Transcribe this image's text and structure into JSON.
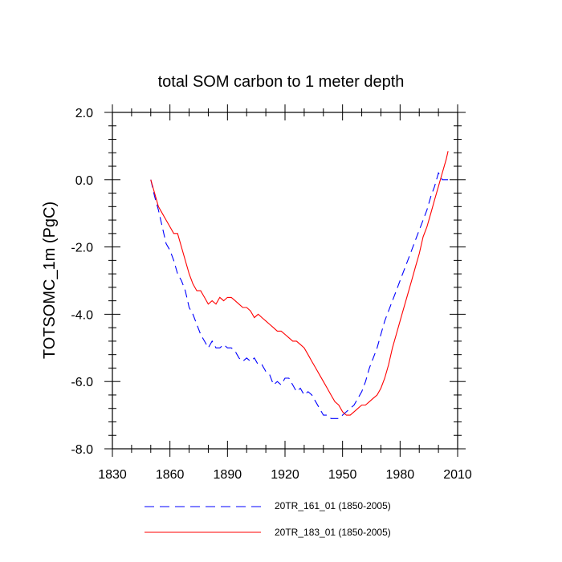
{
  "chart_data": {
    "type": "line",
    "title": "total SOM carbon to 1 meter depth",
    "xlabel": "",
    "ylabel": "TOTSOMC_1m  (PgC)",
    "xlim": [
      1830,
      2010
    ],
    "ylim": [
      -8.0,
      2.0
    ],
    "x_ticks": [
      1830,
      1860,
      1890,
      1920,
      1950,
      1980,
      2010
    ],
    "y_ticks": [
      -8.0,
      -6.0,
      -4.0,
      -2.0,
      0.0,
      2.0
    ],
    "y_tick_labels": [
      "-8.0",
      "-6.0",
      "-4.0",
      "-2.0",
      "0.0",
      "2.0"
    ],
    "legend_position": "bottom",
    "series": [
      {
        "name": "20TR_161_01 (1850-2005)",
        "color": "#0000ff",
        "style": "dashed",
        "x": [
          1850,
          1852,
          1854,
          1856,
          1858,
          1860,
          1862,
          1864,
          1866,
          1868,
          1870,
          1872,
          1874,
          1876,
          1878,
          1880,
          1882,
          1884,
          1886,
          1888,
          1890,
          1892,
          1894,
          1896,
          1898,
          1900,
          1902,
          1904,
          1906,
          1908,
          1910,
          1912,
          1914,
          1916,
          1918,
          1920,
          1922,
          1924,
          1926,
          1928,
          1930,
          1932,
          1934,
          1936,
          1938,
          1940,
          1942,
          1944,
          1946,
          1948,
          1950,
          1952,
          1954,
          1956,
          1958,
          1960,
          1962,
          1964,
          1966,
          1968,
          1970,
          1972,
          1974,
          1976,
          1978,
          1980,
          1982,
          1984,
          1986,
          1988,
          1990,
          1992,
          1994,
          1996,
          1998,
          2000,
          2002,
          2004,
          2005
        ],
        "values": [
          0.0,
          -0.5,
          -0.9,
          -1.4,
          -1.9,
          -2.1,
          -2.4,
          -2.8,
          -3.0,
          -3.3,
          -3.8,
          -4.0,
          -4.3,
          -4.6,
          -4.8,
          -5.0,
          -4.8,
          -5.0,
          -5.0,
          -4.9,
          -5.0,
          -5.0,
          -5.1,
          -5.3,
          -5.4,
          -5.3,
          -5.4,
          -5.3,
          -5.5,
          -5.5,
          -5.7,
          -5.8,
          -6.1,
          -6.0,
          -6.1,
          -5.9,
          -5.9,
          -6.1,
          -6.3,
          -6.2,
          -6.4,
          -6.3,
          -6.4,
          -6.6,
          -6.8,
          -7.0,
          -7.0,
          -7.1,
          -7.1,
          -7.1,
          -7.0,
          -6.9,
          -6.8,
          -6.7,
          -6.5,
          -6.3,
          -6.0,
          -5.6,
          -5.3,
          -5.0,
          -4.6,
          -4.2,
          -3.9,
          -3.6,
          -3.3,
          -3.0,
          -2.7,
          -2.4,
          -2.1,
          -1.8,
          -1.5,
          -1.2,
          -0.9,
          -0.5,
          -0.2,
          0.2,
          0.0,
          0.0,
          0.0
        ]
      },
      {
        "name": "20TR_183_01 (1850-2005)",
        "color": "#ff0000",
        "style": "solid",
        "x": [
          1850,
          1852,
          1854,
          1856,
          1858,
          1860,
          1862,
          1864,
          1866,
          1868,
          1870,
          1872,
          1874,
          1876,
          1878,
          1880,
          1882,
          1884,
          1886,
          1888,
          1890,
          1892,
          1894,
          1896,
          1898,
          1900,
          1902,
          1904,
          1906,
          1908,
          1910,
          1912,
          1914,
          1916,
          1918,
          1920,
          1922,
          1924,
          1926,
          1928,
          1930,
          1932,
          1934,
          1936,
          1938,
          1940,
          1942,
          1944,
          1946,
          1948,
          1950,
          1952,
          1954,
          1956,
          1958,
          1960,
          1962,
          1964,
          1966,
          1968,
          1970,
          1972,
          1974,
          1976,
          1978,
          1980,
          1982,
          1984,
          1986,
          1988,
          1990,
          1992,
          1994,
          1996,
          1998,
          2000,
          2002,
          2004,
          2005
        ],
        "values": [
          0.0,
          -0.4,
          -0.8,
          -1.0,
          -1.2,
          -1.4,
          -1.6,
          -1.6,
          -2.0,
          -2.4,
          -2.8,
          -3.1,
          -3.3,
          -3.3,
          -3.5,
          -3.7,
          -3.6,
          -3.7,
          -3.5,
          -3.6,
          -3.5,
          -3.5,
          -3.6,
          -3.7,
          -3.8,
          -3.8,
          -3.9,
          -4.1,
          -4.0,
          -4.1,
          -4.2,
          -4.3,
          -4.4,
          -4.5,
          -4.5,
          -4.6,
          -4.7,
          -4.8,
          -4.8,
          -4.9,
          -5.0,
          -5.2,
          -5.4,
          -5.6,
          -5.8,
          -6.0,
          -6.2,
          -6.4,
          -6.6,
          -6.7,
          -6.9,
          -7.0,
          -7.0,
          -6.9,
          -6.8,
          -6.7,
          -6.7,
          -6.6,
          -6.5,
          -6.4,
          -6.2,
          -5.9,
          -5.5,
          -5.0,
          -4.6,
          -4.2,
          -3.8,
          -3.4,
          -3.0,
          -2.6,
          -2.2,
          -1.7,
          -1.4,
          -1.0,
          -0.6,
          -0.2,
          0.2,
          0.6,
          0.85
        ]
      }
    ]
  }
}
